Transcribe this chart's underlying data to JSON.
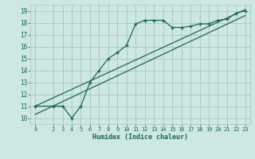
{
  "xlabel": "Humidex (Indice chaleur)",
  "bg_color": "#cce8e0",
  "grid_color": "#aaccc4",
  "line_color": "#1a6655",
  "xlim": [
    -0.5,
    23.5
  ],
  "ylim": [
    9.5,
    19.5
  ],
  "xticks": [
    0,
    2,
    3,
    4,
    5,
    6,
    7,
    8,
    9,
    10,
    11,
    12,
    13,
    14,
    15,
    16,
    17,
    18,
    19,
    20,
    21,
    22,
    23
  ],
  "yticks": [
    10,
    11,
    12,
    13,
    14,
    15,
    16,
    17,
    18,
    19
  ],
  "data_x": [
    0,
    2,
    3,
    4,
    5,
    6,
    7,
    8,
    9,
    10,
    11,
    12,
    13,
    14,
    15,
    16,
    17,
    18,
    19,
    20,
    21,
    22,
    23
  ],
  "data_y": [
    11,
    11,
    11,
    10,
    11,
    13,
    14,
    15,
    15.5,
    16.1,
    17.9,
    18.2,
    18.2,
    18.2,
    17.6,
    17.6,
    17.7,
    17.9,
    17.9,
    18.2,
    18.3,
    18.8,
    19.0
  ],
  "line1_x": [
    0,
    23
  ],
  "line1_y": [
    11.0,
    19.1
  ],
  "line2_x": [
    0,
    23
  ],
  "line2_y": [
    10.3,
    18.6
  ]
}
